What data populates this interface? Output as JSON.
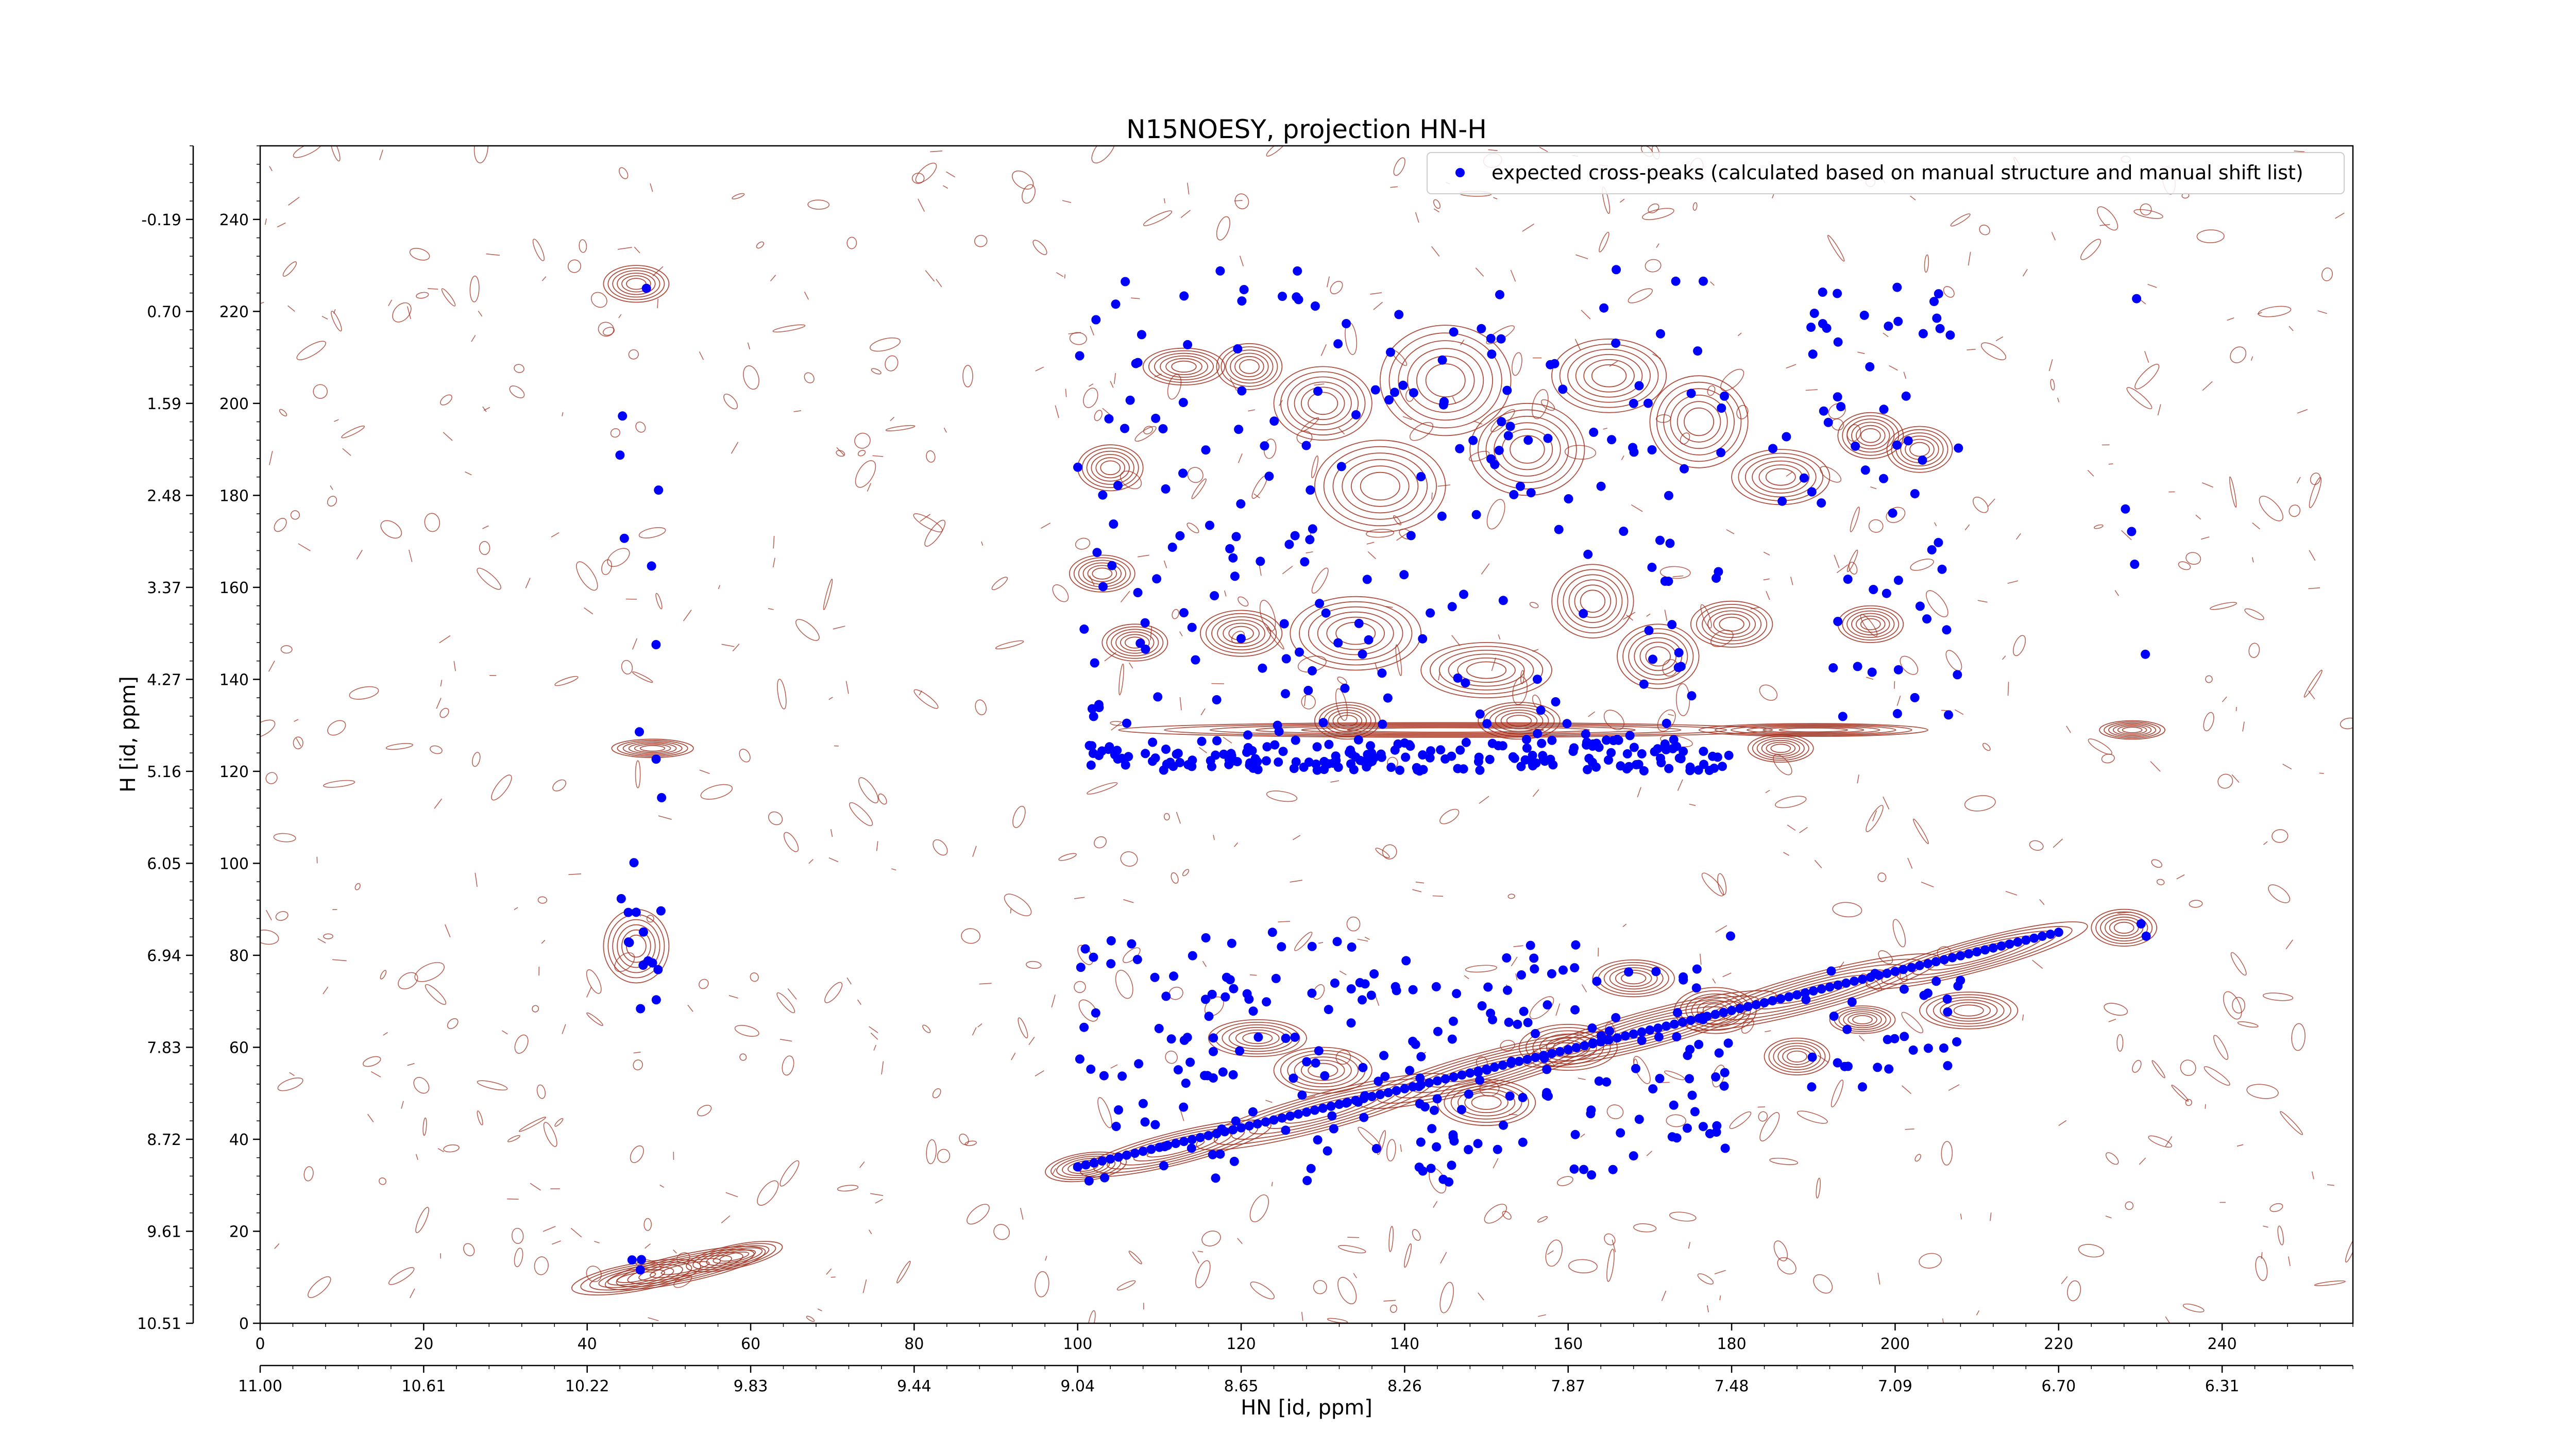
{
  "chart_data": {
    "type": "scatter",
    "title": "N15NOESY, projection HN-H",
    "xlabel": "HN [id, ppm]",
    "ylabel": "H [id, ppm]",
    "xlim": [
      0,
      256
    ],
    "ylim": [
      0,
      256
    ],
    "x_ticks": [
      0,
      20,
      40,
      60,
      80,
      100,
      120,
      140,
      160,
      180,
      200,
      220,
      240
    ],
    "y_ticks": [
      0,
      20,
      40,
      60,
      80,
      100,
      120,
      140,
      160,
      180,
      200,
      220,
      240
    ],
    "x_ppm_ticks": [
      "11.00",
      "10.61",
      "10.22",
      "9.83",
      "9.44",
      "9.04",
      "8.65",
      "8.26",
      "7.87",
      "7.48",
      "7.09",
      "6.70",
      "6.31"
    ],
    "x_ppm_positions": [
      0,
      20,
      40,
      60,
      80,
      100,
      120,
      140,
      160,
      180,
      200,
      220,
      240
    ],
    "y_ppm_ticks": [
      "10.51",
      "9.61",
      "8.72",
      "7.83",
      "6.94",
      "6.05",
      "5.16",
      "4.27",
      "3.37",
      "2.48",
      "1.59",
      "0.70",
      "-0.19"
    ],
    "y_ppm_positions": [
      0,
      20,
      40,
      60,
      80,
      100,
      120,
      140,
      160,
      180,
      200,
      220,
      240
    ],
    "legend": {
      "label": "expected cross-peaks (calculated based on manual structure and manual shift list)",
      "position": "top-right",
      "marker_color": "#0000ff"
    },
    "colors": {
      "contour": "#a0301e",
      "peaks": "#0000ff"
    },
    "contour_blobs": [
      [
        46.0,
        10.0,
        8.0,
        3.0,
        -10
      ],
      [
        52.0,
        12.0,
        10.0,
        3.0,
        -12
      ],
      [
        58.0,
        14.5,
        6.0,
        2.5,
        -12
      ],
      [
        46.0,
        226.0,
        4.0,
        4.0,
        0
      ],
      [
        46.0,
        82.0,
        4.0,
        8.0,
        0
      ],
      [
        48.0,
        125.0,
        5.0,
        2.0,
        0
      ],
      [
        101.0,
        34.0,
        5.0,
        3.0,
        -8
      ],
      [
        112.0,
        38.0,
        12.0,
        3.5,
        -14
      ],
      [
        130.0,
        46.0,
        16.0,
        4.0,
        -15
      ],
      [
        150.0,
        55.0,
        16.0,
        4.0,
        -15
      ],
      [
        170.0,
        64.0,
        16.0,
        4.0,
        -15
      ],
      [
        190.0,
        72.0,
        16.0,
        4.0,
        -15
      ],
      [
        210.0,
        80.0,
        14.0,
        3.5,
        -15
      ],
      [
        228.0,
        86.0,
        4.0,
        4.0,
        0
      ],
      [
        145.0,
        129.0,
        40.0,
        1.6,
        0
      ],
      [
        190.0,
        129.0,
        14.0,
        1.4,
        0
      ],
      [
        229.0,
        129.0,
        4.0,
        2.0,
        0
      ],
      [
        104.0,
        186.0,
        4.0,
        5.0,
        0
      ],
      [
        113.0,
        208.0,
        5.0,
        4.0,
        0
      ],
      [
        121.0,
        208.0,
        4.0,
        5.0,
        0
      ],
      [
        130.0,
        200.0,
        6.0,
        8.0,
        0
      ],
      [
        137.0,
        182.0,
        8.0,
        10.0,
        0
      ],
      [
        145.0,
        205.0,
        8.0,
        12.0,
        0
      ],
      [
        155.0,
        190.0,
        7.0,
        10.0,
        0
      ],
      [
        165.0,
        206.0,
        7.0,
        8.0,
        0
      ],
      [
        176.0,
        196.0,
        6.0,
        10.0,
        0
      ],
      [
        186.0,
        184.0,
        6.0,
        6.0,
        0
      ],
      [
        197.0,
        193.0,
        4.0,
        5.0,
        0
      ],
      [
        203.0,
        190.0,
        4.0,
        5.0,
        0
      ],
      [
        103.0,
        163.0,
        4.0,
        4.0,
        0
      ],
      [
        107.0,
        148.0,
        4.0,
        4.0,
        0
      ],
      [
        120.0,
        150.0,
        5.0,
        5.0,
        0
      ],
      [
        134.0,
        150.0,
        8.0,
        8.0,
        0
      ],
      [
        150.0,
        142.0,
        8.0,
        6.0,
        0
      ],
      [
        163.0,
        157.0,
        5.0,
        8.0,
        0
      ],
      [
        171.0,
        145.0,
        5.0,
        7.0,
        0
      ],
      [
        180.0,
        152.0,
        5.0,
        5.0,
        0
      ],
      [
        197.0,
        152.0,
        4.0,
        4.0,
        0
      ],
      [
        122.0,
        62.0,
        6.0,
        4.0,
        0
      ],
      [
        130.0,
        55.0,
        6.0,
        5.0,
        0
      ],
      [
        150.0,
        48.0,
        6.0,
        5.0,
        0
      ],
      [
        160.0,
        60.0,
        6.0,
        5.0,
        0
      ],
      [
        168.0,
        75.0,
        5.0,
        4.0,
        0
      ],
      [
        178.0,
        68.0,
        5.0,
        5.0,
        0
      ],
      [
        188.0,
        58.0,
        4.0,
        4.0,
        0
      ],
      [
        196.0,
        66.0,
        4.0,
        3.0,
        0
      ],
      [
        209.0,
        68.0,
        6.0,
        4.0,
        0
      ],
      [
        133.0,
        131.0,
        4.0,
        4.0,
        0
      ],
      [
        154.0,
        131.0,
        5.0,
        4.0,
        0
      ],
      [
        186.0,
        125.0,
        4.0,
        3.0,
        0
      ]
    ],
    "peak_clusters": [
      [
        100,
        180,
        120,
        230,
        210
      ],
      [
        100,
        180,
        120,
        127,
        175
      ],
      [
        100,
        180,
        30,
        85,
        230
      ],
      [
        44,
        50,
        5,
        228,
        14
      ],
      [
        44,
        50,
        68,
        90,
        10
      ],
      [
        45,
        47,
        10,
        14,
        3
      ],
      [
        185,
        208,
        175,
        226,
        40
      ],
      [
        188,
        208,
        130,
        170,
        20
      ],
      [
        188,
        208,
        50,
        80,
        30
      ],
      [
        228,
        231,
        125,
        225,
        5
      ],
      [
        228,
        231,
        84,
        87,
        2
      ]
    ]
  }
}
